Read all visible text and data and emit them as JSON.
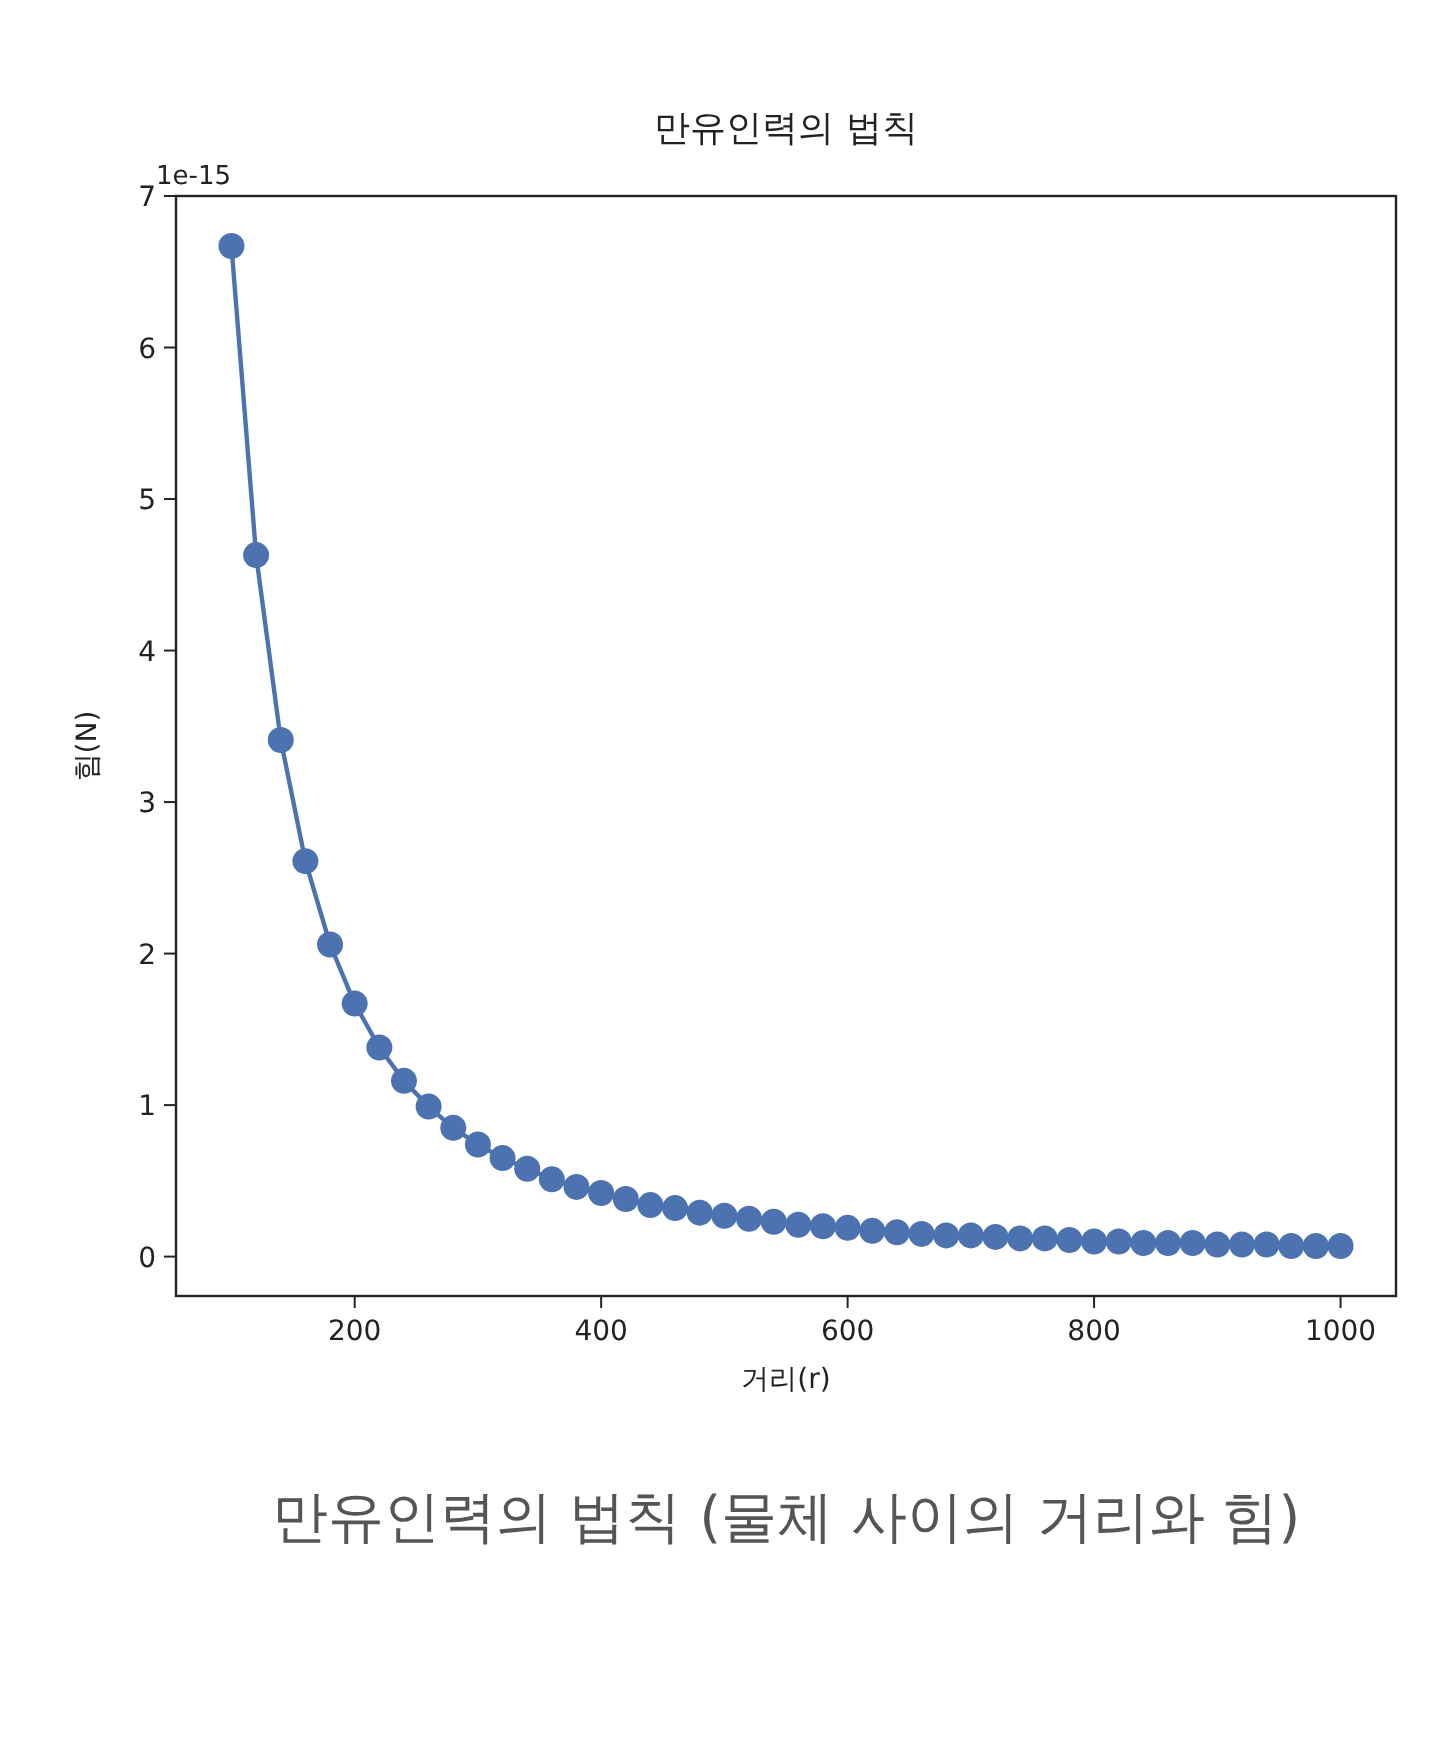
{
  "chart_data": {
    "type": "line",
    "title": "만유인력의 법칙",
    "xlabel": "거리(r)",
    "ylabel": "힘(N)",
    "annotations": [
      "1e-15",
      "만유인력의 법칙 (물체 사이의 거리와 힘)"
    ],
    "x": [
      100,
      120,
      140,
      160,
      180,
      200,
      220,
      240,
      260,
      280,
      300,
      320,
      340,
      360,
      380,
      400,
      420,
      440,
      460,
      480,
      500,
      520,
      540,
      560,
      580,
      600,
      620,
      640,
      660,
      680,
      700,
      720,
      740,
      760,
      780,
      800,
      820,
      840,
      860,
      880,
      900,
      920,
      940,
      960,
      980,
      1000
    ],
    "series": [
      {
        "color": "#4c72b0",
        "values": [
          6.67,
          4.63,
          3.41,
          2.61,
          2.06,
          1.67,
          1.38,
          1.16,
          0.99,
          0.85,
          0.74,
          0.65,
          0.58,
          0.51,
          0.46,
          0.42,
          0.38,
          0.34,
          0.32,
          0.29,
          0.27,
          0.25,
          0.23,
          0.21,
          0.2,
          0.19,
          0.17,
          0.16,
          0.15,
          0.14,
          0.14,
          0.13,
          0.12,
          0.12,
          0.11,
          0.1,
          0.1,
          0.09,
          0.09,
          0.09,
          0.08,
          0.08,
          0.08,
          0.07,
          0.07,
          0.07
        ]
      }
    ],
    "xlim": [
      55,
      1045
    ],
    "xticks": [
      200,
      400,
      600,
      800,
      1000
    ],
    "ylim": [
      -0.26,
      7.0
    ],
    "yticks": [
      0,
      1,
      2,
      3,
      4,
      5,
      6,
      7
    ],
    "marker": "circle",
    "line_style": "solid",
    "grid": false
  }
}
